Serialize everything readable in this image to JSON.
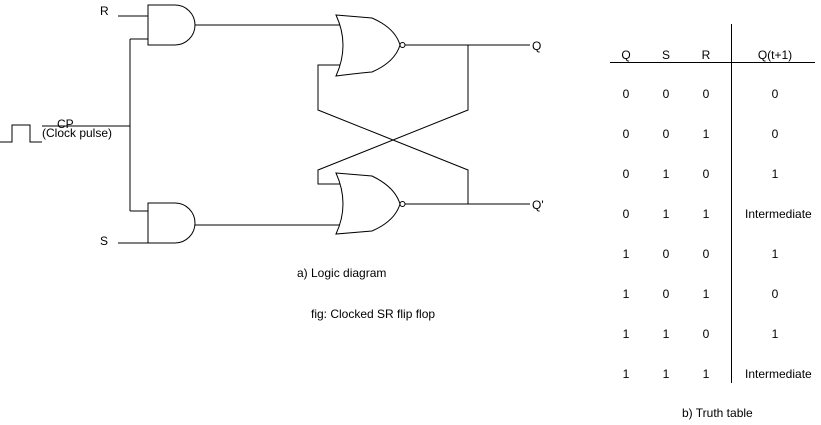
{
  "logic_diagram": {
    "input_r": "R",
    "input_s": "S",
    "clock_label": "CP",
    "clock_sublabel": "(Clock pulse)",
    "output_q": "Q",
    "output_q_bar": "Q'",
    "caption": "a)  Logic diagram",
    "figure_caption": "fig: Clocked SR flip flop"
  },
  "truth_table": {
    "caption": "b) Truth table",
    "headers": [
      "Q",
      "S",
      "R",
      "Q(t+1)"
    ],
    "rows": [
      [
        "0",
        "0",
        "0",
        "0"
      ],
      [
        "0",
        "0",
        "1",
        "0"
      ],
      [
        "0",
        "1",
        "0",
        "1"
      ],
      [
        "0",
        "1",
        "1",
        "Intermediate"
      ],
      [
        "1",
        "0",
        "0",
        "1"
      ],
      [
        "1",
        "0",
        "1",
        "0"
      ],
      [
        "1",
        "1",
        "0",
        "1"
      ],
      [
        "1",
        "1",
        "1",
        "Intermediate"
      ]
    ]
  }
}
